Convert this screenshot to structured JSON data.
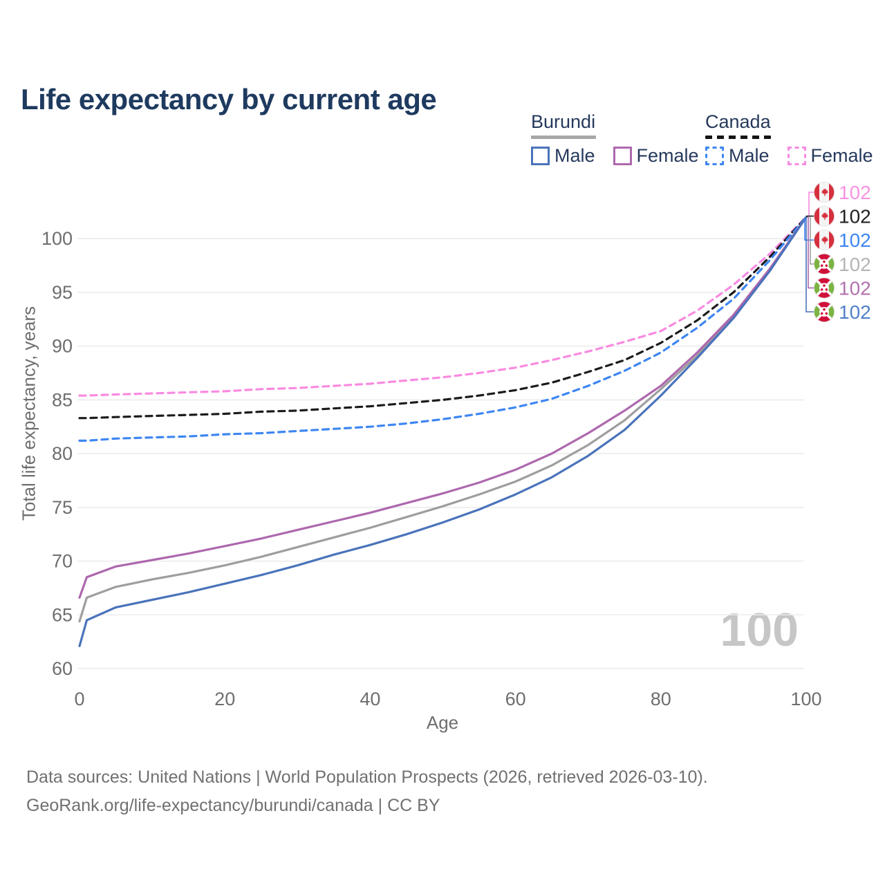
{
  "title": "Life expectancy by current age",
  "legend": {
    "groups": [
      {
        "label": "Burundi",
        "underline": {
          "style": "solid",
          "color": "#a7a7a7"
        },
        "items": [
          {
            "label": "Male",
            "color": "#4a73bb",
            "dashed": false
          },
          {
            "label": "Female",
            "color": "#ad68ad",
            "dashed": false
          }
        ]
      },
      {
        "label": "Canada",
        "underline": {
          "style": "dashed",
          "color": "#141414"
        },
        "items": [
          {
            "label": "Male",
            "color": "#3d86f2",
            "dashed": true
          },
          {
            "label": "Female",
            "color": "#f98ae0",
            "dashed": true
          }
        ]
      }
    ]
  },
  "watermark": "100",
  "footer": {
    "line1": "Data sources: United Nations | World Population Prospects (2026, retrieved 2026-03-10).",
    "line2": "GeoRank.org/life-expectancy/burundi/canada | CC BY"
  },
  "chart_data": {
    "type": "line",
    "title": "Life expectancy by current age",
    "xlabel": "Age",
    "ylabel": "Total life expectancy, years",
    "xlim": [
      0,
      100
    ],
    "ylim": [
      60,
      102
    ],
    "xticks": [
      0,
      20,
      40,
      60,
      80,
      100
    ],
    "yticks": [
      60,
      65,
      70,
      75,
      80,
      85,
      90,
      95,
      100
    ],
    "grid": "horizontal",
    "legend_position": "top-right",
    "ages": [
      0,
      1,
      5,
      10,
      15,
      20,
      25,
      30,
      35,
      40,
      45,
      50,
      55,
      60,
      65,
      70,
      75,
      80,
      85,
      90,
      95,
      100
    ],
    "series": [
      {
        "name": "Canada Female",
        "country": "Canada",
        "sex": "Female",
        "color": "#f98ae0",
        "dash": true,
        "flag": "canada-flag-icon",
        "end_label": "102",
        "end_label_color": "#f993e2",
        "values": [
          85.4,
          85.4,
          85.5,
          85.6,
          85.7,
          85.8,
          86.0,
          86.1,
          86.3,
          86.5,
          86.8,
          87.1,
          87.5,
          88.0,
          88.7,
          89.5,
          90.4,
          91.4,
          93.3,
          95.7,
          98.6,
          102
        ]
      },
      {
        "name": "Canada Both",
        "country": "Canada",
        "sex": "Both",
        "color": "#1c1c1c",
        "dash": true,
        "flag": "canada-flag-icon",
        "end_label": "102",
        "end_label_color": "#212121",
        "values": [
          83.3,
          83.3,
          83.4,
          83.5,
          83.6,
          83.7,
          83.9,
          84.0,
          84.2,
          84.4,
          84.7,
          85.0,
          85.4,
          85.9,
          86.6,
          87.6,
          88.7,
          90.3,
          92.4,
          95.0,
          98.3,
          102
        ]
      },
      {
        "name": "Canada Male",
        "country": "Canada",
        "sex": "Male",
        "color": "#3d86f2",
        "dash": true,
        "flag": "canada-flag-icon",
        "end_label": "102",
        "end_label_color": "#3d86f2",
        "values": [
          81.2,
          81.2,
          81.4,
          81.5,
          81.6,
          81.8,
          81.9,
          82.1,
          82.3,
          82.5,
          82.8,
          83.2,
          83.7,
          84.3,
          85.1,
          86.3,
          87.7,
          89.4,
          91.7,
          94.4,
          98.0,
          102
        ]
      },
      {
        "name": "Burundi Both",
        "country": "Burundi",
        "sex": "Both",
        "color": "#9e9e9e",
        "dash": false,
        "flag": "burundi-flag-icon",
        "end_label": "102",
        "end_label_color": "#b5b5b5",
        "values": [
          64.4,
          66.6,
          67.6,
          68.3,
          68.9,
          69.6,
          70.4,
          71.3,
          72.2,
          73.1,
          74.1,
          75.1,
          76.2,
          77.4,
          78.9,
          80.8,
          83.1,
          86.0,
          89.1,
          92.8,
          97.1,
          102
        ]
      },
      {
        "name": "Burundi Female",
        "country": "Burundi",
        "sex": "Female",
        "color": "#ad68ad",
        "dash": false,
        "flag": "burundi-flag-icon",
        "end_label": "102",
        "end_label_color": "#b172ae",
        "values": [
          66.6,
          68.5,
          69.5,
          70.1,
          70.7,
          71.4,
          72.1,
          72.9,
          73.7,
          74.5,
          75.4,
          76.3,
          77.3,
          78.5,
          80.0,
          81.9,
          84.0,
          86.3,
          89.4,
          92.9,
          97.2,
          102
        ]
      },
      {
        "name": "Burundi Male",
        "country": "Burundi",
        "sex": "Male",
        "color": "#4a73bb",
        "dash": false,
        "flag": "burundi-flag-icon",
        "end_label": "102",
        "end_label_color": "#5181c9",
        "values": [
          62.1,
          64.5,
          65.7,
          66.4,
          67.1,
          67.9,
          68.7,
          69.6,
          70.6,
          71.5,
          72.5,
          73.6,
          74.8,
          76.2,
          77.8,
          79.8,
          82.2,
          85.4,
          88.9,
          92.6,
          97.0,
          102
        ]
      }
    ]
  }
}
